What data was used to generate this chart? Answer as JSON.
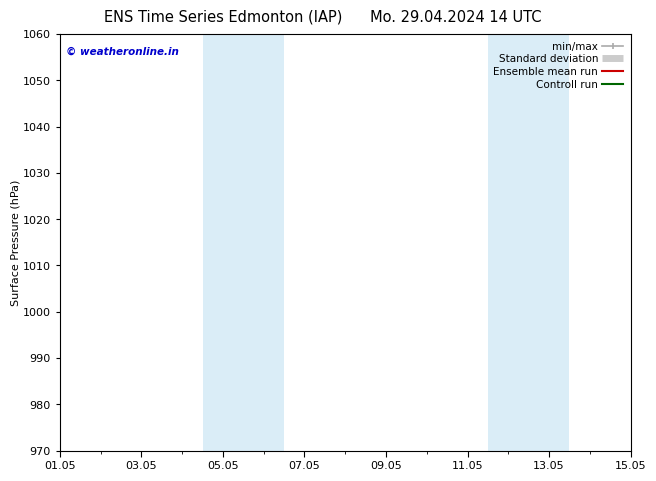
{
  "title": "ENS Time Series Edmonton (IAP)",
  "title2": "Mo. 29.04.2024 14 UTC",
  "ylabel": "Surface Pressure (hPa)",
  "ylim": [
    970,
    1060
  ],
  "yticks": [
    970,
    980,
    990,
    1000,
    1010,
    1020,
    1030,
    1040,
    1050,
    1060
  ],
  "xlim": [
    0,
    14
  ],
  "xtick_labels": [
    "01.05",
    "03.05",
    "05.05",
    "07.05",
    "09.05",
    "11.05",
    "13.05",
    "15.05"
  ],
  "xtick_positions": [
    0,
    2,
    4,
    6,
    8,
    10,
    12,
    14
  ],
  "background_color": "#ffffff",
  "plot_bg_color": "#ffffff",
  "shaded_bands": [
    {
      "x_start": 3.5,
      "x_end": 5.5,
      "color": "#daedf7"
    },
    {
      "x_start": 10.5,
      "x_end": 12.5,
      "color": "#daedf7"
    }
  ],
  "watermark_text": "© weatheronline.in",
  "watermark_color": "#0000cc",
  "legend_items": [
    {
      "label": "min/max",
      "color": "#aaaaaa",
      "lw": 1.2
    },
    {
      "label": "Standard deviation",
      "color": "#cccccc",
      "lw": 5
    },
    {
      "label": "Ensemble mean run",
      "color": "#cc0000",
      "lw": 1.5
    },
    {
      "label": "Controll run",
      "color": "#006600",
      "lw": 1.5
    }
  ],
  "title_fontsize": 10.5,
  "axis_label_fontsize": 8,
  "tick_fontsize": 8,
  "legend_fontsize": 7.5,
  "watermark_fontsize": 7.5
}
